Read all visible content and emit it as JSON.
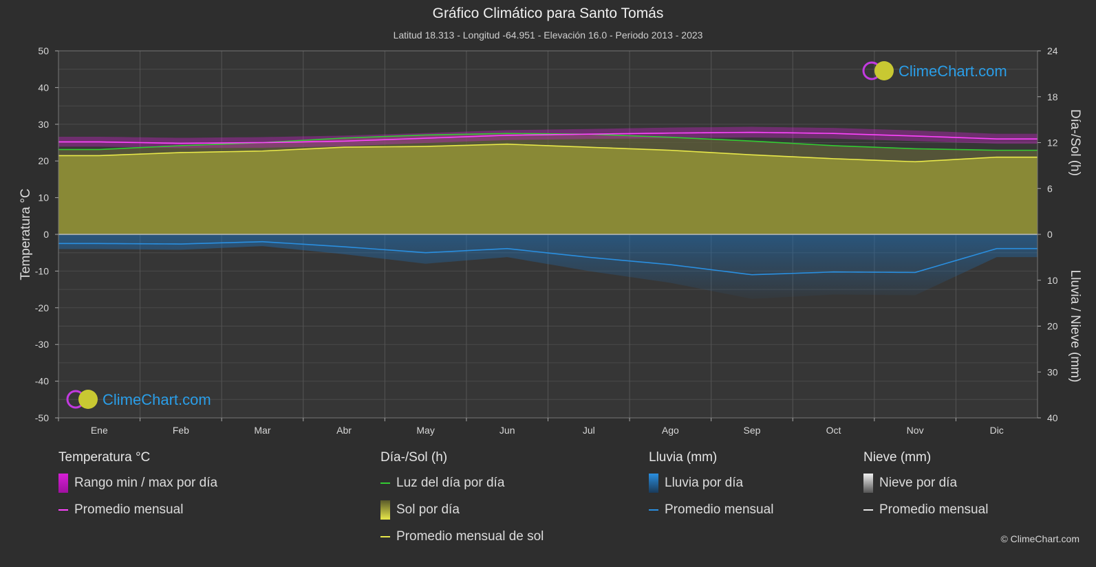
{
  "header": {
    "title": "Gráfico Climático para Santo Tomás",
    "subtitle": "Latitud 18.313 - Longitud -64.951 - Elevación 16.0 - Periodo 2013 - 2023"
  },
  "watermark": "ClimeChart.com",
  "copyright": "© ClimeChart.com",
  "chart_data": {
    "type": "area",
    "months": [
      "Ene",
      "Feb",
      "Mar",
      "Abr",
      "May",
      "Jun",
      "Jul",
      "Ago",
      "Sep",
      "Oct",
      "Nov",
      "Dic"
    ],
    "axes": {
      "left": {
        "label": "Temperatura °C",
        "ticks": [
          50,
          40,
          30,
          20,
          10,
          0,
          -10,
          -20,
          -30,
          -40,
          -50
        ],
        "range": [
          -50,
          50
        ]
      },
      "right_top": {
        "label": "Día-/Sol (h)",
        "ticks": [
          24,
          18,
          12,
          6,
          0
        ],
        "range": [
          0,
          24
        ]
      },
      "right_bottom": {
        "label": "Lluvia / Nieve (mm)",
        "ticks": [
          0,
          10,
          20,
          30,
          40
        ],
        "range": [
          0,
          40
        ]
      }
    },
    "grid": true,
    "series": [
      {
        "name": "Luz del día por día",
        "axis": "right_top",
        "color": "#33cc33",
        "values": [
          11.1,
          11.6,
          12.0,
          12.6,
          13.0,
          13.2,
          13.1,
          12.7,
          12.2,
          11.6,
          11.2,
          11.0
        ]
      },
      {
        "name": "Promedio mensual de sol",
        "axis": "right_top",
        "color": "#e8e84a",
        "values": [
          10.3,
          10.7,
          10.9,
          11.4,
          11.5,
          11.8,
          11.4,
          11.0,
          10.4,
          9.9,
          9.5,
          10.1
        ]
      },
      {
        "name": "Promedio mensual",
        "key": "temp_avg",
        "axis": "left",
        "color": "#ff44ff",
        "values": [
          25.2,
          24.8,
          25.0,
          25.4,
          26.2,
          27.0,
          27.3,
          27.6,
          27.8,
          27.5,
          26.8,
          26.0
        ]
      },
      {
        "name": "Promedio mensual",
        "key": "rain_avg",
        "axis": "right_bottom",
        "color": "#2a8fe0",
        "values": [
          2.0,
          2.1,
          1.6,
          2.7,
          4.0,
          3.1,
          5.0,
          6.6,
          8.8,
          8.2,
          8.3,
          3.1
        ]
      },
      {
        "name": "Rango min / max por día",
        "key": "temp_range",
        "axis": "left",
        "color": "#d61fd6",
        "max": [
          26.6,
          26.3,
          26.5,
          26.9,
          27.6,
          28.4,
          28.7,
          29.1,
          29.3,
          29.0,
          28.3,
          27.4
        ],
        "min": [
          23.9,
          23.5,
          23.6,
          24.0,
          24.9,
          25.7,
          26.0,
          26.2,
          26.4,
          26.1,
          25.4,
          24.7
        ]
      }
    ]
  },
  "legend": {
    "temperature": {
      "title": "Temperatura °C",
      "items": [
        {
          "label": "Rango min / max por día",
          "swatch": "box",
          "color": "#d61fd6"
        },
        {
          "label": "Promedio mensual",
          "swatch": "line",
          "color": "#ff44ff"
        }
      ]
    },
    "daylight": {
      "title": "Día-/Sol (h)",
      "items": [
        {
          "label": "Luz del día por día",
          "swatch": "line",
          "color": "#33cc33"
        },
        {
          "label": "Sol por día",
          "swatch": "box",
          "color": "#c8c83a"
        },
        {
          "label": "Promedio mensual de sol",
          "swatch": "line",
          "color": "#e8e84a"
        }
      ]
    },
    "rain": {
      "title": "Lluvia (mm)",
      "items": [
        {
          "label": "Lluvia por día",
          "swatch": "box",
          "color": "#1f6fb5"
        },
        {
          "label": "Promedio mensual",
          "swatch": "line",
          "color": "#2a8fe0"
        }
      ]
    },
    "snow": {
      "title": "Nieve (mm)",
      "items": [
        {
          "label": "Nieve por día",
          "swatch": "box",
          "color": "#cfcfcf"
        },
        {
          "label": "Promedio mensual",
          "swatch": "line",
          "color": "#e8e8e8"
        }
      ]
    }
  }
}
